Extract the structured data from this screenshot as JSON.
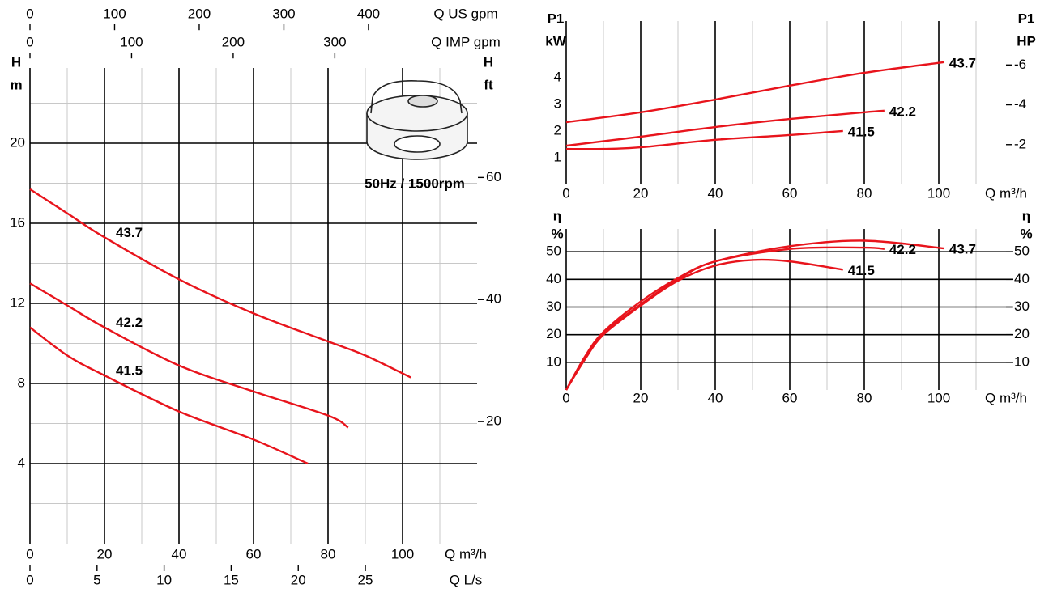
{
  "chart_data": [
    {
      "type": "line",
      "xlabel": "Q m³/h",
      "ylabel": [
        "H",
        "m"
      ],
      "y2label": [
        "H",
        "ft"
      ],
      "annotation": "50Hz / 1500rpm",
      "xlim": [
        0,
        120
      ],
      "xticks": [
        0,
        20,
        40,
        60,
        80,
        100
      ],
      "x_minor_grid": [
        10,
        30,
        50,
        70,
        90,
        110
      ],
      "ylim": [
        0,
        24
      ],
      "yticks": [
        4,
        8,
        12,
        16,
        20
      ],
      "y_minor_grid": [
        2,
        6,
        10,
        14,
        18,
        22
      ],
      "y2lim": [
        0,
        78.74
      ],
      "y2ticks": [
        20,
        40,
        60
      ],
      "grid": true,
      "extra_x_axes": [
        {
          "label": "Q US gpm",
          "side": "top",
          "lim": [
            0,
            528.3
          ],
          "ticks": [
            0,
            100,
            200,
            300,
            400
          ]
        },
        {
          "label": "Q IMP gpm",
          "side": "top",
          "lim": [
            0,
            440
          ],
          "ticks": [
            0,
            100,
            200,
            300
          ]
        },
        {
          "label": "Q L/s",
          "side": "bottom",
          "lim": [
            0,
            33.33
          ],
          "ticks": [
            0,
            5,
            10,
            15,
            20,
            25
          ]
        }
      ],
      "series": [
        {
          "name": "43.7",
          "color": "#e8141c",
          "x": [
            0,
            10,
            20,
            40,
            60,
            80,
            90,
            102.2
          ],
          "values": [
            17.7,
            16.5,
            15.3,
            13.2,
            11.5,
            10.1,
            9.4,
            8.3
          ]
        },
        {
          "name": "42.2",
          "color": "#e8141c",
          "x": [
            0,
            10,
            20,
            40,
            60,
            80,
            85.4
          ],
          "values": [
            13.0,
            11.9,
            10.8,
            8.9,
            7.6,
            6.4,
            5.8
          ]
        },
        {
          "name": "41.5",
          "color": "#e8141c",
          "x": [
            0,
            10,
            20,
            40,
            60,
            74.6
          ],
          "values": [
            10.8,
            9.4,
            8.4,
            6.6,
            5.2,
            4.0
          ]
        }
      ]
    },
    {
      "type": "line",
      "xlabel": "Q m³/h",
      "ylabel": [
        "P1",
        "kW"
      ],
      "y2label": [
        "P1",
        "HP"
      ],
      "xlim": [
        0,
        120
      ],
      "xticks": [
        0,
        20,
        40,
        60,
        80,
        100
      ],
      "x_minor_grid": [
        10,
        30,
        50,
        70,
        90,
        110
      ],
      "ylim": [
        0,
        6.3
      ],
      "yticks": [
        1,
        2,
        3,
        4
      ],
      "y2lim": [
        0,
        8.45
      ],
      "y2ticks": [
        {
          "value": 2,
          "label": "-2"
        },
        {
          "value": 4,
          "label": "-4"
        },
        {
          "value": 6,
          "label": "-6"
        }
      ],
      "grid": false,
      "series": [
        {
          "name": "43.7",
          "color": "#e8141c",
          "x": [
            0,
            20,
            40,
            60,
            80,
            101.5
          ],
          "values": [
            2.33,
            2.7,
            3.18,
            3.7,
            4.18,
            4.58
          ]
        },
        {
          "name": "42.2",
          "color": "#e8141c",
          "x": [
            0,
            20,
            40,
            60,
            80,
            85.4
          ],
          "values": [
            1.45,
            1.79,
            2.15,
            2.45,
            2.7,
            2.76
          ]
        },
        {
          "name": "41.5",
          "color": "#e8141c",
          "x": [
            0,
            10,
            20,
            40,
            60,
            74.3
          ],
          "values": [
            1.33,
            1.33,
            1.39,
            1.67,
            1.85,
            2.0
          ]
        }
      ]
    },
    {
      "type": "line",
      "xlabel": "Q m³/h",
      "ylabel": [
        "η",
        "%"
      ],
      "y2label": [
        "η",
        "%"
      ],
      "xlim": [
        0,
        120
      ],
      "xticks": [
        0,
        20,
        40,
        60,
        80,
        100
      ],
      "x_minor_grid": [
        10,
        30,
        50,
        70,
        90,
        110
      ],
      "ylim": [
        0,
        60
      ],
      "yticks": [
        10,
        20,
        30,
        40,
        50
      ],
      "y2lim": [
        0,
        60
      ],
      "y2ticks": [
        10,
        20,
        30,
        40,
        50
      ],
      "grid": true,
      "series": [
        {
          "name": "43.7",
          "color": "#e8141c",
          "x": [
            0,
            5,
            10,
            20,
            30,
            40,
            60,
            80,
            101.5
          ],
          "values": [
            0,
            12,
            21,
            32,
            40.5,
            46.5,
            52,
            54,
            51.2
          ]
        },
        {
          "name": "42.2",
          "color": "#e8141c",
          "x": [
            0,
            5,
            10,
            20,
            30,
            40,
            60,
            80,
            85.4
          ],
          "values": [
            0,
            11.5,
            20.5,
            31,
            40,
            46.5,
            51,
            51.5,
            51
          ]
        },
        {
          "name": "41.5",
          "color": "#e8141c",
          "x": [
            0,
            5,
            10,
            20,
            30,
            40,
            50,
            60,
            74.3
          ],
          "values": [
            0,
            11,
            20,
            30.5,
            39.5,
            45,
            47,
            46.5,
            43.5
          ]
        }
      ]
    }
  ]
}
